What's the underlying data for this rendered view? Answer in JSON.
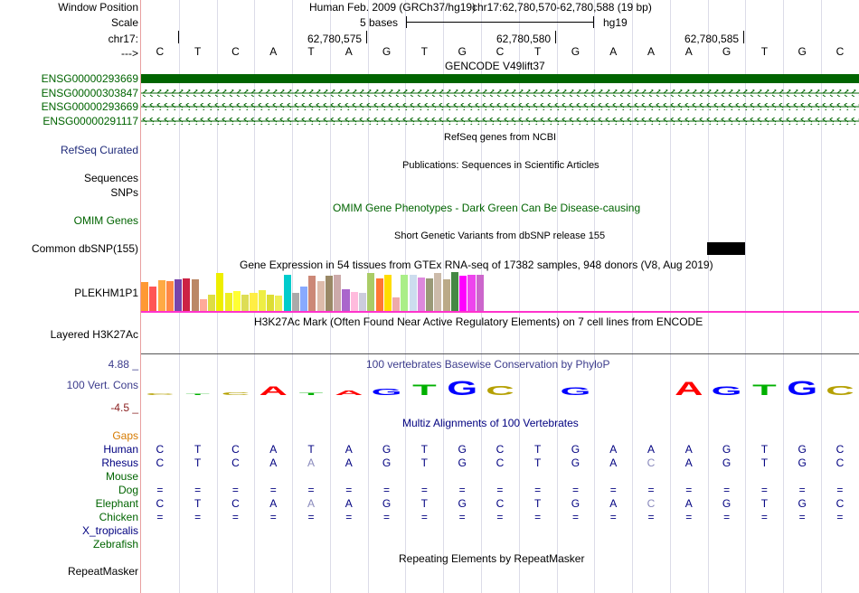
{
  "colors": {
    "gencode": "#006400",
    "refseq": "#1f2a7a",
    "omim": "#006400",
    "phylo": "#3c3c8c",
    "gaps": "#d67a00",
    "human": "#000080",
    "rhesus": "#000080",
    "species_green": "#006400",
    "species_navy": "#000080",
    "gtex_line": "#ff33cc",
    "snp_box": "#000000",
    "base_A": "#ff0000",
    "base_C": "#b5a000",
    "base_G": "#0000ff",
    "base_T": "#00b000"
  },
  "labels": {
    "window_position": "Window Position",
    "scale": "Scale",
    "chrom": "chr17:",
    "strand_arrow": "--->",
    "tx1": "ENSG00000293669",
    "tx2": "ENSG00000303847",
    "tx3": "ENSG00000293669",
    "tx4": "ENSG00000291117",
    "refseq": "RefSeq Curated",
    "sequences": "Sequences",
    "snps": "SNPs",
    "omim": "OMIM Genes",
    "dbsnp": "Common dbSNP(155)",
    "gene": "PLEKHM1P1",
    "h3k27ac": "Layered H3K27Ac",
    "phylo_max": "4.88 _",
    "cons": "100 Vert. Cons",
    "phylo_min": "-4.5 _",
    "gaps": "Gaps",
    "human": "Human",
    "rhesus": "Rhesus",
    "mouse": "Mouse",
    "dog": "Dog",
    "elephant": "Elephant",
    "chicken": "Chicken",
    "xtrop": "X_tropicalis",
    "zebrafish": "Zebrafish",
    "repeatmasker": "RepeatMasker"
  },
  "header": {
    "assembly": "Human Feb. 2009 (GRCh37/hg19)",
    "position": "chr17:62,780,570-62,780,588 (19 bp)",
    "scale_text": "5 bases",
    "db": "hg19",
    "coord1": "62,780,575",
    "coord2": "62,780,580",
    "coord3": "62,780,585"
  },
  "tracks": {
    "gencode_title": "GENCODE V49lift37",
    "refseq_title": "RefSeq genes from NCBI",
    "pubs_title": "Publications: Sequences in Scientific Articles",
    "omim_title": "OMIM Gene Phenotypes - Dark Green Can Be Disease-causing",
    "dbsnp_title": "Short Genetic Variants from dbSNP release 155",
    "gtex_title": "Gene Expression in 54 tissues from GTEx RNA-seq of 17382 samples, 948 donors (V8, Aug 2019)",
    "h3k27ac_title": "H3K27Ac Mark (Often Found Near Active Regulatory Elements) on 7 cell lines from ENCODE",
    "phylop_title": "100 vertebrates Basewise Conservation by PhyloP",
    "multiz_title": "Multiz Alignments of 100 Vertebrates",
    "repeat_title": "Repeating Elements by RepeatMasker"
  },
  "sequence": [
    "C",
    "T",
    "C",
    "A",
    "T",
    "A",
    "G",
    "T",
    "G",
    "C",
    "T",
    "G",
    "A",
    "A",
    "A",
    "G",
    "T",
    "G",
    "C"
  ],
  "alignment": {
    "human": [
      "C",
      "T",
      "C",
      "A",
      "T",
      "A",
      "G",
      "T",
      "G",
      "C",
      "T",
      "G",
      "A",
      "A",
      "A",
      "G",
      "T",
      "G",
      "C"
    ],
    "rhesus": [
      "C",
      "T",
      "C",
      "A",
      "A",
      "A",
      "G",
      "T",
      "G",
      "C",
      "T",
      "G",
      "A",
      "C",
      "A",
      "G",
      "T",
      "G",
      "C"
    ],
    "dog": [
      "=",
      "=",
      "=",
      "=",
      "=",
      "=",
      "=",
      "=",
      "=",
      "=",
      "=",
      "=",
      "=",
      "=",
      "=",
      "=",
      "=",
      "=",
      "="
    ],
    "elephant": [
      "C",
      "T",
      "C",
      "A",
      "A",
      "A",
      "G",
      "T",
      "G",
      "C",
      "T",
      "G",
      "A",
      "C",
      "A",
      "G",
      "T",
      "G",
      "C"
    ],
    "chicken": [
      "=",
      "=",
      "=",
      "=",
      "=",
      "=",
      "=",
      "=",
      "=",
      "=",
      "=",
      "=",
      "=",
      "=",
      "=",
      "=",
      "=",
      "=",
      "="
    ]
  },
  "phylop_logo": {
    "bases": [
      "C",
      "T",
      "C",
      "A",
      "T",
      "A",
      "G",
      "T",
      "G",
      "C",
      "T",
      "G",
      "A",
      "A",
      "A",
      "G",
      "T",
      "G",
      "C"
    ],
    "scores": [
      0.08,
      0.05,
      0.15,
      0.45,
      0.12,
      0.25,
      0.35,
      0.55,
      0.75,
      0.5,
      0.0,
      0.4,
      0.0,
      0.0,
      0.7,
      0.45,
      0.55,
      0.75,
      0.5
    ]
  },
  "gtex": {
    "colors": [
      "#ff9933",
      "#ff5555",
      "#ffaa44",
      "#ff8844",
      "#7744aa",
      "#cc2244",
      "#bb8866",
      "#ffaa99",
      "#dddd44",
      "#eeee00",
      "#eeee22",
      "#ffff33",
      "#dddd55",
      "#ffee44",
      "#eeee44",
      "#dddd33",
      "#eeee55",
      "#00cccc",
      "#aaaaaa",
      "#88aaff",
      "#cc8877",
      "#ddbbaa",
      "#998866",
      "#ccaaaa",
      "#aa66cc",
      "#ffbbdd",
      "#ccccdd",
      "#aacc66",
      "#ff7733",
      "#ffdd00",
      "#eeaaaa",
      "#aaee88",
      "#ccddee",
      "#dd88dd",
      "#999977",
      "#ccbbaa",
      "#bbaa88",
      "#448844",
      "#ff00ff",
      "#ee44ee",
      "#cc66cc"
    ],
    "values": [
      0.72,
      0.62,
      0.78,
      0.74,
      0.8,
      0.82,
      0.8,
      0.3,
      0.4,
      0.95,
      0.45,
      0.5,
      0.4,
      0.45,
      0.52,
      0.42,
      0.38,
      0.9,
      0.45,
      0.62,
      0.88,
      0.75,
      0.88,
      0.92,
      0.55,
      0.48,
      0.45,
      0.95,
      0.82,
      0.9,
      0.35,
      0.92,
      0.92,
      0.85,
      0.82,
      0.95,
      0.8,
      0.98,
      0.88,
      0.92,
      0.9
    ]
  }
}
